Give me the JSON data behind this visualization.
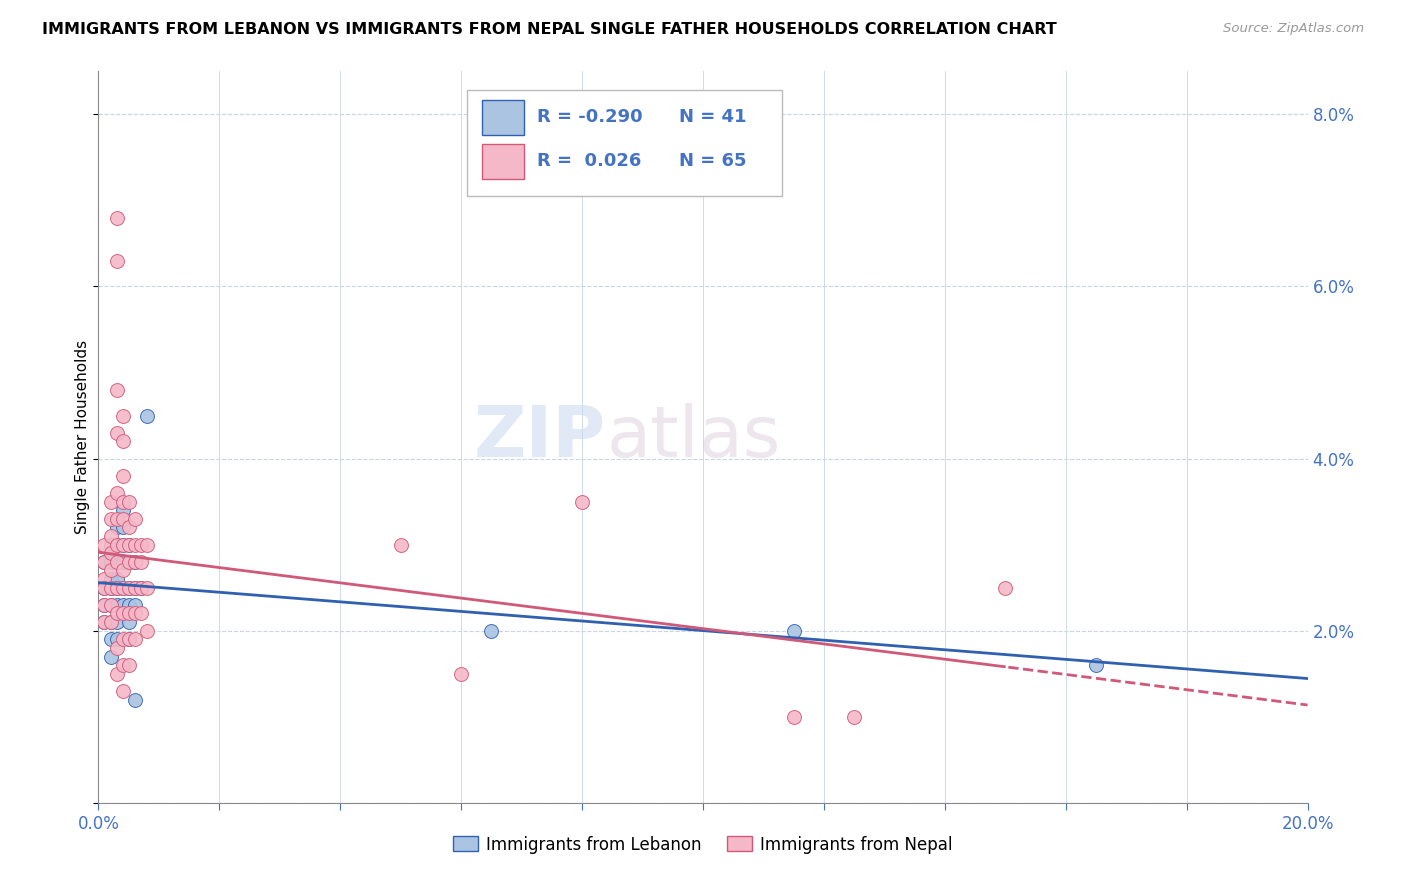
{
  "title": "IMMIGRANTS FROM LEBANON VS IMMIGRANTS FROM NEPAL SINGLE FATHER HOUSEHOLDS CORRELATION CHART",
  "source": "Source: ZipAtlas.com",
  "ylabel": "Single Father Households",
  "legend_label1": "Immigrants from Lebanon",
  "legend_label2": "Immigrants from Nepal",
  "r1": "-0.290",
  "n1": "41",
  "r2": "0.026",
  "n2": "65",
  "color_lebanon": "#aac4e2",
  "color_nepal": "#f5b8c8",
  "line_color_lebanon": "#3060b0",
  "line_color_nepal": "#d05878",
  "xmin": 0.0,
  "xmax": 0.2,
  "ymin": 0.0,
  "ymax": 0.085,
  "yticks": [
    0.0,
    0.02,
    0.04,
    0.06,
    0.08
  ],
  "ytick_labels": [
    "",
    "2.0%",
    "4.0%",
    "6.0%",
    "8.0%"
  ],
  "xticks": [
    0.0,
    0.02,
    0.04,
    0.06,
    0.08,
    0.1,
    0.12,
    0.14,
    0.16,
    0.18,
    0.2
  ],
  "lebanon_points": [
    [
      0.001,
      0.028
    ],
    [
      0.001,
      0.025
    ],
    [
      0.001,
      0.023
    ],
    [
      0.001,
      0.021
    ],
    [
      0.002,
      0.03
    ],
    [
      0.002,
      0.028
    ],
    [
      0.002,
      0.026
    ],
    [
      0.002,
      0.025
    ],
    [
      0.002,
      0.023
    ],
    [
      0.002,
      0.021
    ],
    [
      0.002,
      0.019
    ],
    [
      0.002,
      0.017
    ],
    [
      0.003,
      0.032
    ],
    [
      0.003,
      0.03
    ],
    [
      0.003,
      0.028
    ],
    [
      0.003,
      0.026
    ],
    [
      0.003,
      0.025
    ],
    [
      0.003,
      0.023
    ],
    [
      0.003,
      0.021
    ],
    [
      0.003,
      0.019
    ],
    [
      0.004,
      0.034
    ],
    [
      0.004,
      0.032
    ],
    [
      0.004,
      0.03
    ],
    [
      0.004,
      0.028
    ],
    [
      0.004,
      0.025
    ],
    [
      0.004,
      0.023
    ],
    [
      0.005,
      0.03
    ],
    [
      0.005,
      0.028
    ],
    [
      0.005,
      0.025
    ],
    [
      0.005,
      0.023
    ],
    [
      0.005,
      0.021
    ],
    [
      0.005,
      0.019
    ],
    [
      0.006,
      0.028
    ],
    [
      0.006,
      0.025
    ],
    [
      0.006,
      0.023
    ],
    [
      0.006,
      0.012
    ],
    [
      0.007,
      0.025
    ],
    [
      0.008,
      0.045
    ],
    [
      0.065,
      0.02
    ],
    [
      0.115,
      0.02
    ],
    [
      0.165,
      0.016
    ]
  ],
  "nepal_points": [
    [
      0.001,
      0.03
    ],
    [
      0.001,
      0.028
    ],
    [
      0.001,
      0.026
    ],
    [
      0.001,
      0.025
    ],
    [
      0.001,
      0.023
    ],
    [
      0.001,
      0.021
    ],
    [
      0.002,
      0.035
    ],
    [
      0.002,
      0.033
    ],
    [
      0.002,
      0.031
    ],
    [
      0.002,
      0.029
    ],
    [
      0.002,
      0.027
    ],
    [
      0.002,
      0.025
    ],
    [
      0.002,
      0.023
    ],
    [
      0.002,
      0.021
    ],
    [
      0.003,
      0.068
    ],
    [
      0.003,
      0.063
    ],
    [
      0.003,
      0.048
    ],
    [
      0.003,
      0.043
    ],
    [
      0.003,
      0.036
    ],
    [
      0.003,
      0.033
    ],
    [
      0.003,
      0.03
    ],
    [
      0.003,
      0.028
    ],
    [
      0.003,
      0.025
    ],
    [
      0.003,
      0.022
    ],
    [
      0.003,
      0.018
    ],
    [
      0.003,
      0.015
    ],
    [
      0.004,
      0.045
    ],
    [
      0.004,
      0.042
    ],
    [
      0.004,
      0.038
    ],
    [
      0.004,
      0.035
    ],
    [
      0.004,
      0.033
    ],
    [
      0.004,
      0.03
    ],
    [
      0.004,
      0.027
    ],
    [
      0.004,
      0.025
    ],
    [
      0.004,
      0.022
    ],
    [
      0.004,
      0.019
    ],
    [
      0.004,
      0.016
    ],
    [
      0.004,
      0.013
    ],
    [
      0.005,
      0.035
    ],
    [
      0.005,
      0.032
    ],
    [
      0.005,
      0.03
    ],
    [
      0.005,
      0.028
    ],
    [
      0.005,
      0.025
    ],
    [
      0.005,
      0.022
    ],
    [
      0.005,
      0.019
    ],
    [
      0.005,
      0.016
    ],
    [
      0.006,
      0.033
    ],
    [
      0.006,
      0.03
    ],
    [
      0.006,
      0.028
    ],
    [
      0.006,
      0.025
    ],
    [
      0.006,
      0.022
    ],
    [
      0.006,
      0.019
    ],
    [
      0.007,
      0.03
    ],
    [
      0.007,
      0.028
    ],
    [
      0.007,
      0.025
    ],
    [
      0.007,
      0.022
    ],
    [
      0.008,
      0.03
    ],
    [
      0.008,
      0.025
    ],
    [
      0.008,
      0.02
    ],
    [
      0.05,
      0.03
    ],
    [
      0.06,
      0.015
    ],
    [
      0.08,
      0.035
    ],
    [
      0.115,
      0.01
    ],
    [
      0.125,
      0.01
    ],
    [
      0.15,
      0.025
    ]
  ]
}
